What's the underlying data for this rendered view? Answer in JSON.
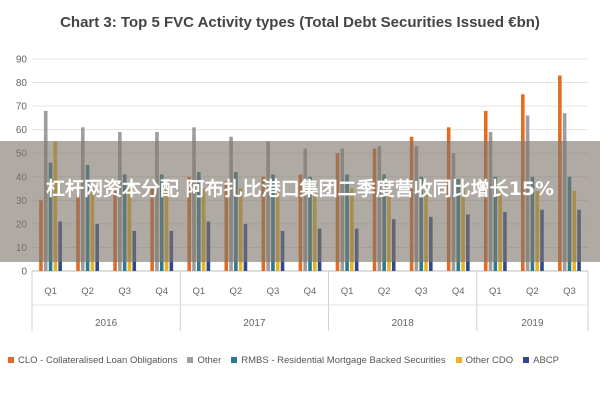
{
  "page": {
    "title": "Chart 3: Top 5 FVC Activity types (Total Debt Securities Issued €bn)",
    "overlay_text": "杠杆网资本分配 阿布扎比港口集团二季度营收同比增长15%"
  },
  "chart_data": {
    "type": "bar",
    "title": "Chart 3: Top 5 FVC Activity types (Total Debt Securities Issued €bn)",
    "ylim": [
      0,
      90
    ],
    "yticks": [
      "0",
      "10",
      "20",
      "30",
      "40",
      "50",
      "60",
      "70",
      "80",
      "90"
    ],
    "grid": true,
    "legend_position": "bottom",
    "categories": [
      "Q1",
      "Q2",
      "Q3",
      "Q4",
      "Q1",
      "Q2",
      "Q3",
      "Q4",
      "Q1",
      "Q2",
      "Q3",
      "Q4",
      "Q1",
      "Q2",
      "Q3"
    ],
    "groups": [
      {
        "label": "2016",
        "count": 4
      },
      {
        "label": "2017",
        "count": 4
      },
      {
        "label": "2018",
        "count": 4
      },
      {
        "label": "2019",
        "count": 3
      }
    ],
    "series": [
      {
        "name": "CLO - Collateralised Loan Obligations",
        "color": "#e36c24",
        "values": [
          30,
          32,
          34,
          35,
          40,
          38,
          40,
          41,
          50,
          52,
          57,
          61,
          68,
          75,
          83
        ]
      },
      {
        "name": "Other",
        "color": "#9e9e9e",
        "values": [
          68,
          61,
          59,
          59,
          61,
          57,
          55,
          52,
          52,
          53,
          53,
          50,
          59,
          66,
          67
        ]
      },
      {
        "name": "RMBS - Residential Mortgage Backed Securities",
        "color": "#2a7b8f",
        "values": [
          46,
          45,
          41,
          41,
          42,
          42,
          41,
          40,
          41,
          41,
          40,
          39,
          40,
          40,
          40
        ]
      },
      {
        "name": "Other CDO",
        "color": "#e9b51e",
        "values": [
          55,
          35,
          35,
          35,
          35,
          35,
          35,
          34,
          35,
          35,
          35,
          35,
          34,
          34,
          34
        ]
      },
      {
        "name": "ABCP",
        "color": "#2e4a8c",
        "values": [
          21,
          20,
          17,
          17,
          21,
          20,
          17,
          18,
          18,
          22,
          23,
          24,
          25,
          26,
          26
        ]
      }
    ]
  }
}
